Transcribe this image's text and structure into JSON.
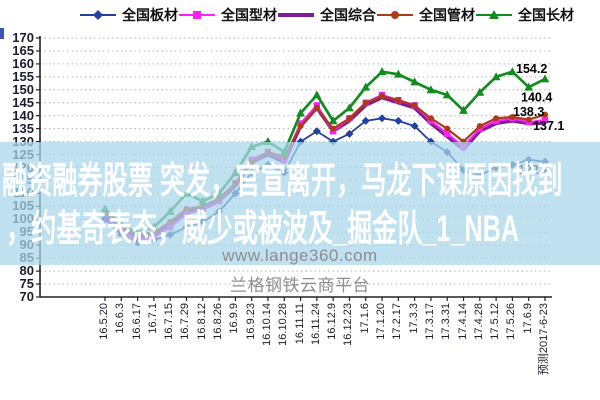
{
  "overlay": {
    "line1": "融资融券股票 突发，官宣离开，马龙下课原因找到",
    "line2": "，约基奇表态，威少或被波及_掘金队_1_NBA",
    "band_color": "#a8d6eb"
  },
  "watermark": {
    "url": "www.lange360.com",
    "platform": "兰格钢铁云商平台"
  },
  "forecast_label": "预测2017-6-23",
  "chart_data": {
    "type": "line",
    "title": "",
    "xlabel": "",
    "ylabel": "",
    "ylim": [
      70,
      170
    ],
    "ytick_step": 5,
    "grid": true,
    "legend_position": "top",
    "x_labels": [
      "16.5.20",
      "16.6.3",
      "16.6.17",
      "16.7.1",
      "16.7.15",
      "16.7.29",
      "16.8.12",
      "16.8.26",
      "16.9.9",
      "16.9.23",
      "16.10.14",
      "16.10.28",
      "16.11.11",
      "16.11.24",
      "16.12.9",
      "16.12.23",
      "17.1.6",
      "17.1.20",
      "17.2.17",
      "17.3.3",
      "17.3.17",
      "17.3.31",
      "17.4.14",
      "17.4.28",
      "17.5.12",
      "17.5.26",
      "17.6.9",
      "预测2017-6-23"
    ],
    "series": [
      {
        "name": "全国板材",
        "color": "#23409e",
        "marker": "diamond",
        "values": [
          100,
          94,
          91,
          92,
          94,
          97,
          99,
          103,
          110,
          118,
          121,
          118,
          130,
          134,
          130,
          133,
          138,
          139,
          138,
          136,
          130,
          126,
          119,
          117,
          120,
          121,
          123,
          122.2
        ],
        "end_label": "122.2"
      },
      {
        "name": "全国型材",
        "color": "#f822f8",
        "marker": "square",
        "values": [
          101,
          95,
          92,
          93,
          97,
          102,
          104,
          107,
          114,
          123,
          126,
          123,
          137,
          144,
          134,
          139,
          145,
          148,
          146,
          144,
          138,
          133,
          128,
          135,
          138,
          139,
          137.5,
          138.3
        ],
        "end_label": "138.3"
      },
      {
        "name": "全国综合",
        "color": "#801d94",
        "marker": "none",
        "values": [
          102,
          96,
          93,
          94,
          98,
          103,
          104,
          107,
          113,
          122,
          125,
          122,
          136,
          143,
          134,
          138,
          144,
          147,
          145,
          143,
          137,
          132,
          127,
          134,
          137,
          138,
          137,
          137.1
        ],
        "end_label": "137.1"
      },
      {
        "name": "全国管材",
        "color": "#ad3a18",
        "marker": "circle",
        "values": [
          103,
          97,
          94,
          95,
          99,
          104,
          105,
          108,
          114,
          122,
          126,
          124,
          136,
          143,
          135,
          139,
          145,
          147.5,
          146,
          144,
          139,
          135,
          130,
          136,
          139,
          139.5,
          138.5,
          140.4
        ],
        "end_label": "140.4"
      },
      {
        "name": "全国长材",
        "color": "#128b20",
        "marker": "triangle",
        "values": [
          104,
          98,
          95,
          97,
          103,
          110,
          107,
          110,
          118,
          128,
          130,
          126,
          141,
          148,
          138,
          143,
          151,
          157,
          156,
          153,
          150,
          148,
          142,
          149,
          155,
          157,
          151,
          154.2
        ],
        "end_label": "154.2"
      }
    ]
  }
}
